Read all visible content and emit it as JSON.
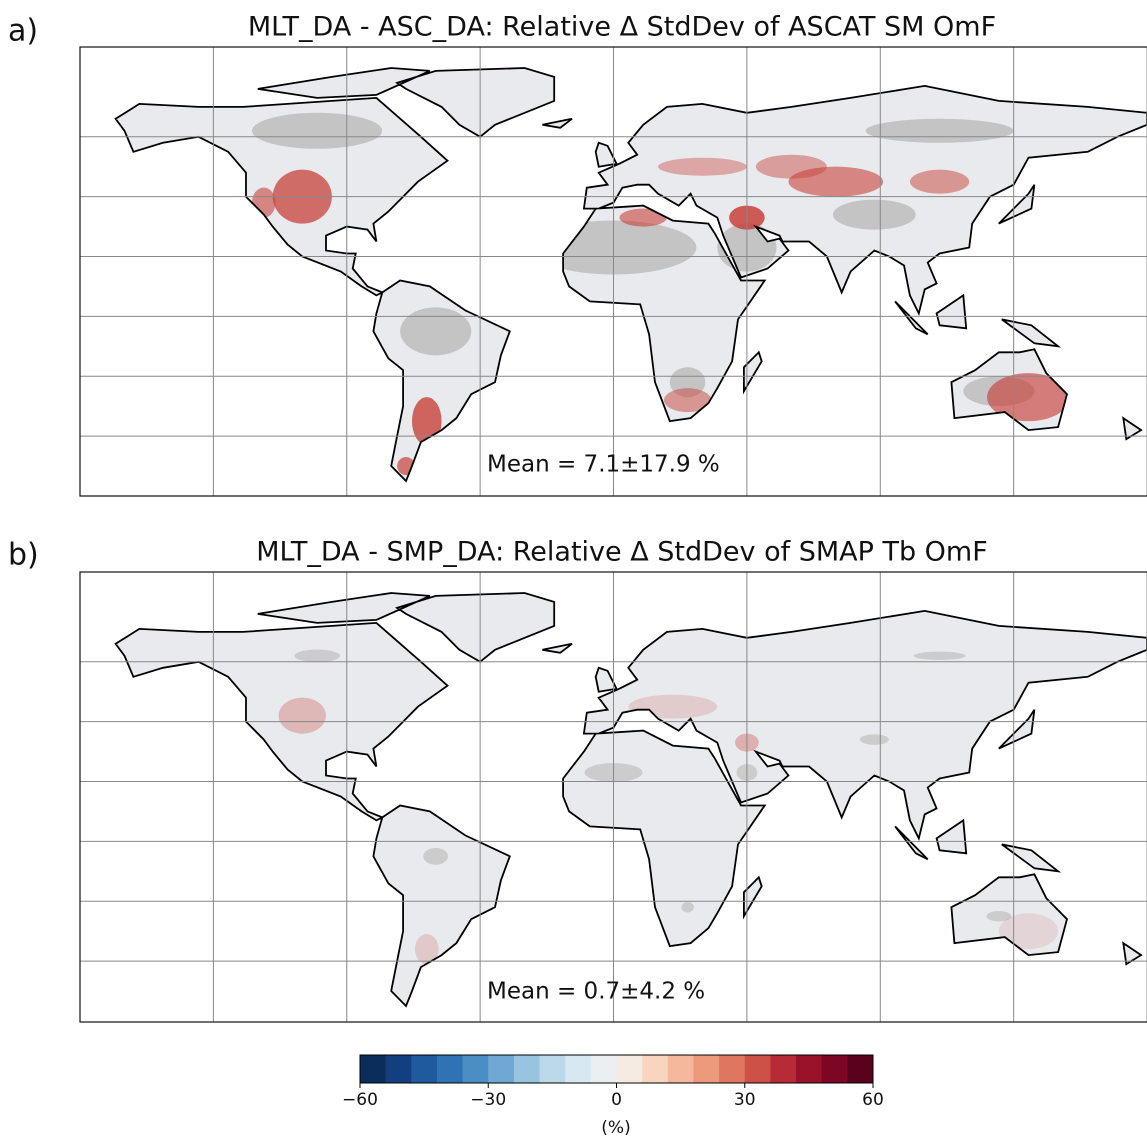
{
  "panels": [
    {
      "label": "a)",
      "title": "MLT_DA - ASC_DA: Relative Δ StdDev of ASCAT SM OmF",
      "annotation": "Mean = 7.1±17.9 %"
    },
    {
      "label": "b)",
      "title": "MLT_DA - SMP_DA: Relative Δ StdDev of SMAP Tb OmF",
      "annotation": "Mean = 0.7±4.2 %"
    }
  ],
  "colorbar": {
    "range": [
      -60,
      60
    ],
    "ticks": [
      {
        "value": -60,
        "label": "−60"
      },
      {
        "value": -30,
        "label": "−30"
      },
      0,
      30,
      60
    ],
    "label": "(%)",
    "colors": [
      "#0a2d5c",
      "#133f7f",
      "#1f5a9e",
      "#2f73b4",
      "#4a8ec3",
      "#6fa8d2",
      "#98c4e0",
      "#bcd9ea",
      "#d8e8f2",
      "#eceff2",
      "#f6ebe3",
      "#f9d5c0",
      "#f5b89c",
      "#ec9a7b",
      "#df7760",
      "#cd5147",
      "#b62b35",
      "#9a1229",
      "#7c0624",
      "#5a011d"
    ]
  }
}
